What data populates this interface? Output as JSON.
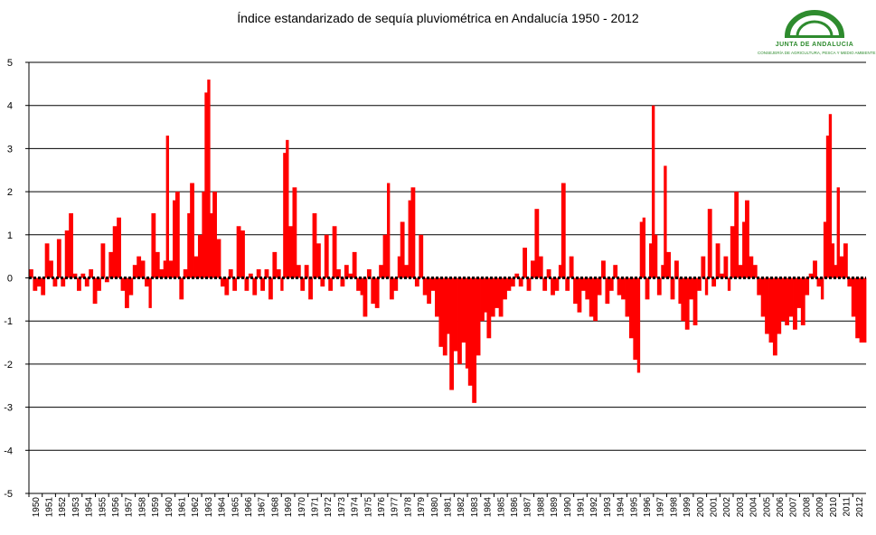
{
  "chart_data": {
    "type": "bar",
    "title": "Índice estandarizado de sequía pluviométrica en Andalucía 1950 - 2012",
    "xlabel": "",
    "ylabel": "",
    "ylim": [
      -5,
      5
    ],
    "yticks": [
      5,
      4,
      3,
      2,
      1,
      0,
      -1,
      -2,
      -3,
      -4,
      -5
    ],
    "xtick_labels": [
      "1950",
      "1951",
      "1952",
      "1953",
      "1954",
      "1955",
      "1956",
      "1957",
      "1958",
      "1959",
      "1960",
      "1961",
      "1962",
      "1963",
      "1964",
      "1965",
      "1966",
      "1967",
      "1968",
      "1969",
      "1970",
      "1971",
      "1972",
      "1973",
      "1974",
      "1975",
      "1976",
      "1977",
      "1978",
      "1979",
      "1980",
      "1981",
      "1982",
      "1983",
      "1984",
      "1985",
      "1986",
      "1987",
      "1988",
      "1989",
      "1990",
      "1991",
      "1992",
      "1993",
      "1994",
      "1995",
      "1996",
      "1997",
      "1998",
      "1999",
      "2000",
      "2001",
      "2002",
      "2003",
      "2004",
      "2005",
      "2006",
      "2007",
      "2008",
      "2009",
      "2010",
      "2011",
      "2012"
    ],
    "grid": true,
    "bar_color": "#ff0000",
    "zero_line_style": "dashed",
    "series": [
      {
        "x_start": 1950,
        "x_end": 2012.9,
        "values": [
          [
            1950.0,
            0.2
          ],
          [
            1950.3,
            -0.3
          ],
          [
            1950.6,
            -0.2
          ],
          [
            1950.9,
            -0.4
          ],
          [
            1951.2,
            0.8
          ],
          [
            1951.5,
            0.4
          ],
          [
            1951.8,
            -0.2
          ],
          [
            1952.1,
            0.9
          ],
          [
            1952.4,
            -0.2
          ],
          [
            1952.7,
            1.1
          ],
          [
            1953.0,
            1.5
          ],
          [
            1953.3,
            0.1
          ],
          [
            1953.6,
            -0.3
          ],
          [
            1953.9,
            0.1
          ],
          [
            1954.2,
            -0.2
          ],
          [
            1954.5,
            0.2
          ],
          [
            1954.8,
            -0.6
          ],
          [
            1955.1,
            -0.3
          ],
          [
            1955.4,
            0.8
          ],
          [
            1955.7,
            -0.1
          ],
          [
            1956.0,
            0.6
          ],
          [
            1956.3,
            1.2
          ],
          [
            1956.6,
            1.4
          ],
          [
            1956.9,
            -0.3
          ],
          [
            1957.2,
            -0.7
          ],
          [
            1957.5,
            -0.4
          ],
          [
            1957.8,
            0.3
          ],
          [
            1958.1,
            0.5
          ],
          [
            1958.4,
            0.4
          ],
          [
            1958.7,
            -0.2
          ],
          [
            1959.0,
            -0.7
          ],
          [
            1959.2,
            1.5
          ],
          [
            1959.5,
            0.6
          ],
          [
            1959.8,
            0.2
          ],
          [
            1960.1,
            0.4
          ],
          [
            1960.3,
            3.3
          ],
          [
            1960.5,
            0.4
          ],
          [
            1960.8,
            1.8
          ],
          [
            1961.0,
            2.0
          ],
          [
            1961.3,
            -0.5
          ],
          [
            1961.6,
            0.2
          ],
          [
            1961.9,
            1.5
          ],
          [
            1962.1,
            2.2
          ],
          [
            1962.4,
            0.5
          ],
          [
            1962.7,
            1.0
          ],
          [
            1963.0,
            2.0
          ],
          [
            1963.2,
            4.3
          ],
          [
            1963.4,
            4.6
          ],
          [
            1963.6,
            1.5
          ],
          [
            1963.8,
            2.0
          ],
          [
            1964.1,
            0.9
          ],
          [
            1964.4,
            -0.2
          ],
          [
            1964.7,
            -0.4
          ],
          [
            1965.0,
            0.2
          ],
          [
            1965.3,
            -0.3
          ],
          [
            1965.6,
            1.2
          ],
          [
            1965.9,
            1.1
          ],
          [
            1966.2,
            -0.3
          ],
          [
            1966.5,
            0.1
          ],
          [
            1966.8,
            -0.4
          ],
          [
            1967.1,
            0.2
          ],
          [
            1967.4,
            -0.3
          ],
          [
            1967.7,
            0.2
          ],
          [
            1968.0,
            -0.5
          ],
          [
            1968.3,
            0.6
          ],
          [
            1968.6,
            0.2
          ],
          [
            1968.9,
            -0.3
          ],
          [
            1969.1,
            2.9
          ],
          [
            1969.3,
            3.2
          ],
          [
            1969.5,
            1.2
          ],
          [
            1969.8,
            2.1
          ],
          [
            1970.1,
            0.3
          ],
          [
            1970.4,
            -0.3
          ],
          [
            1970.7,
            0.3
          ],
          [
            1971.0,
            -0.5
          ],
          [
            1971.3,
            1.5
          ],
          [
            1971.6,
            0.8
          ],
          [
            1971.9,
            -0.2
          ],
          [
            1972.2,
            1.0
          ],
          [
            1972.5,
            -0.3
          ],
          [
            1972.8,
            1.2
          ],
          [
            1973.1,
            0.2
          ],
          [
            1973.4,
            -0.2
          ],
          [
            1973.7,
            0.3
          ],
          [
            1974.0,
            0.1
          ],
          [
            1974.3,
            0.6
          ],
          [
            1974.6,
            -0.3
          ],
          [
            1974.9,
            -0.4
          ],
          [
            1975.1,
            -0.9
          ],
          [
            1975.4,
            0.2
          ],
          [
            1975.7,
            -0.6
          ],
          [
            1976.0,
            -0.7
          ],
          [
            1976.3,
            0.3
          ],
          [
            1976.6,
            1.0
          ],
          [
            1976.9,
            2.2
          ],
          [
            1977.1,
            -0.5
          ],
          [
            1977.4,
            -0.3
          ],
          [
            1977.7,
            0.5
          ],
          [
            1977.9,
            1.3
          ],
          [
            1978.2,
            0.3
          ],
          [
            1978.5,
            1.8
          ],
          [
            1978.7,
            2.1
          ],
          [
            1979.0,
            -0.2
          ],
          [
            1979.3,
            1.0
          ],
          [
            1979.6,
            -0.4
          ],
          [
            1979.9,
            -0.6
          ],
          [
            1980.2,
            -0.3
          ],
          [
            1980.5,
            -0.9
          ],
          [
            1980.8,
            -1.6
          ],
          [
            1981.1,
            -1.8
          ],
          [
            1981.4,
            -1.3
          ],
          [
            1981.6,
            -2.6
          ],
          [
            1981.9,
            -1.7
          ],
          [
            1982.2,
            -2.0
          ],
          [
            1982.5,
            -1.5
          ],
          [
            1982.8,
            -2.1
          ],
          [
            1983.0,
            -2.5
          ],
          [
            1983.3,
            -2.9
          ],
          [
            1983.6,
            -1.8
          ],
          [
            1983.9,
            -1.0
          ],
          [
            1984.2,
            -0.8
          ],
          [
            1984.4,
            -1.4
          ],
          [
            1984.7,
            -0.9
          ],
          [
            1985.0,
            -0.7
          ],
          [
            1985.3,
            -0.9
          ],
          [
            1985.6,
            -0.5
          ],
          [
            1985.9,
            -0.3
          ],
          [
            1986.2,
            -0.2
          ],
          [
            1986.5,
            0.1
          ],
          [
            1986.8,
            -0.2
          ],
          [
            1987.1,
            0.7
          ],
          [
            1987.4,
            -0.3
          ],
          [
            1987.7,
            0.4
          ],
          [
            1988.0,
            1.6
          ],
          [
            1988.3,
            0.5
          ],
          [
            1988.6,
            -0.3
          ],
          [
            1988.9,
            0.2
          ],
          [
            1989.2,
            -0.4
          ],
          [
            1989.5,
            -0.3
          ],
          [
            1989.8,
            0.3
          ],
          [
            1990.0,
            2.2
          ],
          [
            1990.3,
            -0.3
          ],
          [
            1990.6,
            0.5
          ],
          [
            1990.9,
            -0.6
          ],
          [
            1991.2,
            -0.8
          ],
          [
            1991.5,
            -0.3
          ],
          [
            1991.8,
            -0.5
          ],
          [
            1992.1,
            -0.9
          ],
          [
            1992.4,
            -1.0
          ],
          [
            1992.7,
            -0.4
          ],
          [
            1993.0,
            0.4
          ],
          [
            1993.3,
            -0.6
          ],
          [
            1993.6,
            -0.3
          ],
          [
            1993.9,
            0.3
          ],
          [
            1994.2,
            -0.4
          ],
          [
            1994.5,
            -0.5
          ],
          [
            1994.8,
            -0.9
          ],
          [
            1995.1,
            -1.4
          ],
          [
            1995.4,
            -1.9
          ],
          [
            1995.7,
            -2.2
          ],
          [
            1995.9,
            1.3
          ],
          [
            1996.1,
            1.4
          ],
          [
            1996.3,
            -0.5
          ],
          [
            1996.6,
            0.8
          ],
          [
            1996.8,
            4.0
          ],
          [
            1997.0,
            1.0
          ],
          [
            1997.2,
            -0.4
          ],
          [
            1997.5,
            0.3
          ],
          [
            1997.7,
            2.6
          ],
          [
            1997.9,
            0.6
          ],
          [
            1998.2,
            -0.5
          ],
          [
            1998.5,
            0.4
          ],
          [
            1998.8,
            -0.6
          ],
          [
            1999.0,
            -1.0
          ],
          [
            1999.3,
            -1.2
          ],
          [
            1999.6,
            -0.5
          ],
          [
            1999.9,
            -1.1
          ],
          [
            2000.2,
            -0.3
          ],
          [
            2000.5,
            0.5
          ],
          [
            2000.8,
            -0.4
          ],
          [
            2001.0,
            1.6
          ],
          [
            2001.3,
            -0.2
          ],
          [
            2001.6,
            0.8
          ],
          [
            2001.9,
            0.1
          ],
          [
            2002.2,
            0.5
          ],
          [
            2002.5,
            -0.3
          ],
          [
            2002.7,
            1.2
          ],
          [
            2003.0,
            2.0
          ],
          [
            2003.3,
            0.3
          ],
          [
            2003.6,
            1.3
          ],
          [
            2003.8,
            1.8
          ],
          [
            2004.1,
            0.5
          ],
          [
            2004.4,
            0.3
          ],
          [
            2004.7,
            -0.4
          ],
          [
            2005.0,
            -0.9
          ],
          [
            2005.3,
            -1.3
          ],
          [
            2005.6,
            -1.5
          ],
          [
            2005.9,
            -1.8
          ],
          [
            2006.2,
            -1.3
          ],
          [
            2006.5,
            -1.0
          ],
          [
            2006.8,
            -1.1
          ],
          [
            2007.1,
            -0.9
          ],
          [
            2007.4,
            -1.2
          ],
          [
            2007.7,
            -0.7
          ],
          [
            2008.0,
            -1.1
          ],
          [
            2008.3,
            -0.4
          ],
          [
            2008.6,
            0.1
          ],
          [
            2008.9,
            0.4
          ],
          [
            2009.2,
            -0.2
          ],
          [
            2009.5,
            -0.5
          ],
          [
            2009.7,
            1.3
          ],
          [
            2009.9,
            3.3
          ],
          [
            2010.1,
            3.8
          ],
          [
            2010.3,
            0.8
          ],
          [
            2010.5,
            0.3
          ],
          [
            2010.7,
            2.1
          ],
          [
            2010.9,
            0.5
          ],
          [
            2011.2,
            0.8
          ],
          [
            2011.5,
            -0.2
          ],
          [
            2011.8,
            -0.9
          ],
          [
            2012.1,
            -1.4
          ],
          [
            2012.4,
            -1.5
          ]
        ]
      }
    ]
  },
  "logo": {
    "org": "JUNTA DE ANDALUCIA",
    "dept": "CONSEJERÍA DE AGRICULTURA, PESCA Y MEDIO AMBIENTE",
    "color": "#2e8b2e"
  }
}
